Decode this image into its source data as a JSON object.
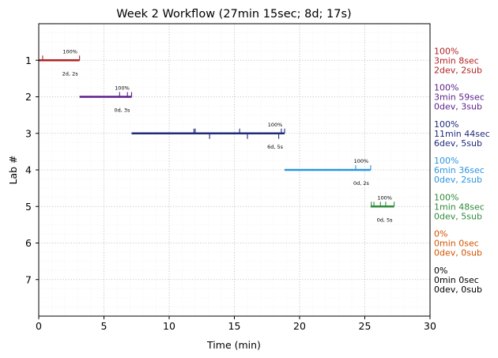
{
  "chart_data": {
    "type": "timeline",
    "title": "Week 2 Workflow (27min 15sec; 8d; 17s)",
    "xlabel": "Time (min)",
    "ylabel": "Lab #",
    "xlim": [
      0,
      30
    ],
    "ylim": [
      0,
      8
    ],
    "x_ticks": [
      0,
      5,
      10,
      15,
      20,
      25,
      30
    ],
    "y_ticks": [
      1,
      2,
      3,
      4,
      5,
      6,
      7
    ],
    "grid": "dotted",
    "labs": [
      {
        "lab": 1,
        "color": "#b22222",
        "start": 0.0,
        "end": 3.13,
        "pct_label": "100%",
        "counts_label": "2d, 2s",
        "up_ticks": [
          0.3,
          3.13
        ],
        "down_ticks": [],
        "summary": [
          "100%",
          "3min 8sec",
          "2dev, 2sub"
        ]
      },
      {
        "lab": 2,
        "color": "#5b1f8a",
        "start": 3.13,
        "end": 7.12,
        "pct_label": "100%",
        "counts_label": "0d, 3s",
        "up_ticks": [
          6.2,
          6.8,
          7.12
        ],
        "down_ticks": [],
        "summary": [
          "100%",
          "3min 59sec",
          "0dev, 3sub"
        ]
      },
      {
        "lab": 3,
        "color": "#1f2a7a",
        "start": 7.12,
        "end": 18.85,
        "pct_label": "100%",
        "counts_label": "6d, 5s",
        "up_ticks": [
          11.9,
          12.0,
          15.4,
          18.6,
          18.85
        ],
        "down_ticks": [
          13.1,
          16.0,
          18.4
        ],
        "summary": [
          "100%",
          "11min 44sec",
          "6dev, 5sub"
        ]
      },
      {
        "lab": 4,
        "color": "#2b95e0",
        "start": 18.85,
        "end": 25.45,
        "pct_label": "100%",
        "counts_label": "0d, 2s",
        "up_ticks": [
          24.3,
          25.45
        ],
        "down_ticks": [],
        "summary": [
          "100%",
          "6min 36sec",
          "0dev, 2sub"
        ]
      },
      {
        "lab": 5,
        "color": "#2e8b3a",
        "start": 25.45,
        "end": 27.25,
        "pct_label": "100%",
        "counts_label": "0d, 5s",
        "up_ticks": [
          25.5,
          25.7,
          26.2,
          26.6,
          27.25
        ],
        "down_ticks": [],
        "summary": [
          "100%",
          "1min 48sec",
          "0dev, 5sub"
        ]
      },
      {
        "lab": 6,
        "color": "#d35400",
        "start": null,
        "end": null,
        "pct_label": "",
        "counts_label": "",
        "up_ticks": [],
        "down_ticks": [],
        "summary": [
          "0%",
          "0min 0sec",
          "0dev, 0sub"
        ]
      },
      {
        "lab": 7,
        "color": "#000000",
        "start": null,
        "end": null,
        "pct_label": "",
        "counts_label": "",
        "up_ticks": [],
        "down_ticks": [],
        "summary": [
          "0%",
          "0min 0sec",
          "0dev, 0sub"
        ]
      }
    ]
  }
}
